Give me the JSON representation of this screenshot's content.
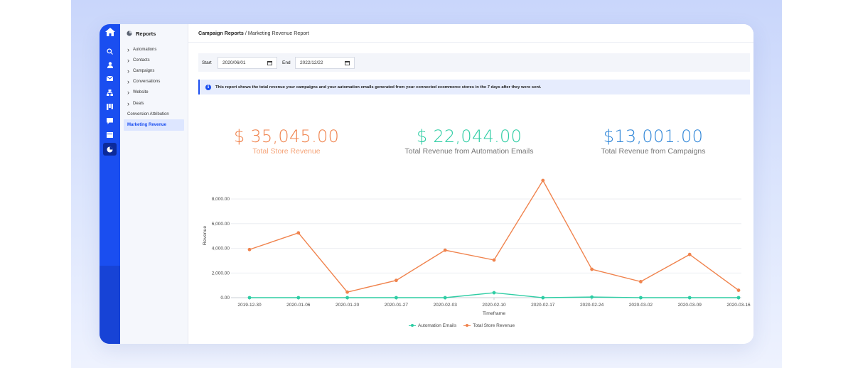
{
  "breadcrumb": {
    "section": "Campaign Reports",
    "separator": " / ",
    "current": "Marketing Revenue Report"
  },
  "subnav": {
    "title": "Reports",
    "items": [
      {
        "label": "Automations",
        "expandable": true
      },
      {
        "label": "Contacts",
        "expandable": true
      },
      {
        "label": "Campaigns",
        "expandable": true
      },
      {
        "label": "Conversations",
        "expandable": true
      },
      {
        "label": "Website",
        "expandable": true
      },
      {
        "label": "Deals",
        "expandable": true
      },
      {
        "label": "Conversion Attribution",
        "expandable": false
      },
      {
        "label": "Marketing Revenue",
        "expandable": false,
        "active": true
      }
    ]
  },
  "rail": {
    "icons": [
      "home-icon",
      "search-icon",
      "contacts-icon",
      "campaigns-icon",
      "automations-icon",
      "deals-icon",
      "conversations-icon",
      "website-icon",
      "reports-icon"
    ],
    "active": "reports-icon"
  },
  "filters": {
    "start_label": "Start",
    "start_value": "2020/06/01",
    "end_label": "End",
    "end_value": "2022/12/22"
  },
  "info": {
    "text": "This report shows the total revenue your campaigns and your automation emails generated from your connected ecommerce stores in the 7 days after they were sent."
  },
  "stats": [
    {
      "value": "$ 35,045.00",
      "label": "Total Store Revenue",
      "color": "#f0834d",
      "label_color": "#f5a479"
    },
    {
      "value": "$ 22,044.00",
      "label": "Total Revenue from Automation Emails",
      "color": "#2ecda4",
      "label_color": "#777777"
    },
    {
      "value": "$13,001.00",
      "label": "Total Revenue from Campaigns",
      "color": "#2f86d8",
      "label_color": "#777777"
    }
  ],
  "colors": {
    "brand": "#1a4ef0",
    "orange": "#f0834d",
    "teal": "#2ecda4"
  },
  "chart_data": {
    "type": "line",
    "xlabel": "Timeframe",
    "ylabel": "Revenue",
    "ylim": [
      0,
      9500
    ],
    "yticks": [
      0,
      2000,
      4000,
      6000,
      8000
    ],
    "ytick_labels": [
      "0.00",
      "2,000.00",
      "4,000.00",
      "6,000.00",
      "8,000.00"
    ],
    "grid": true,
    "legend_position": "bottom",
    "categories": [
      "2019-12-30",
      "2020-01-06",
      "2020-01-20",
      "2020-01-27",
      "2020-02-03",
      "2020-02-10",
      "2020-02-17",
      "2020-02-24",
      "2020-03-02",
      "2020-03-09",
      "2020-03-16"
    ],
    "series": [
      {
        "name": "Automation Emails",
        "color": "#2ecda4",
        "values": [
          0,
          0,
          0,
          0,
          0,
          400,
          0,
          50,
          0,
          0,
          0
        ]
      },
      {
        "name": "Total Store Revenue",
        "color": "#f0834d",
        "values": [
          3900,
          5250,
          450,
          1400,
          3850,
          3050,
          9500,
          2300,
          1300,
          3500,
          600
        ]
      }
    ]
  }
}
